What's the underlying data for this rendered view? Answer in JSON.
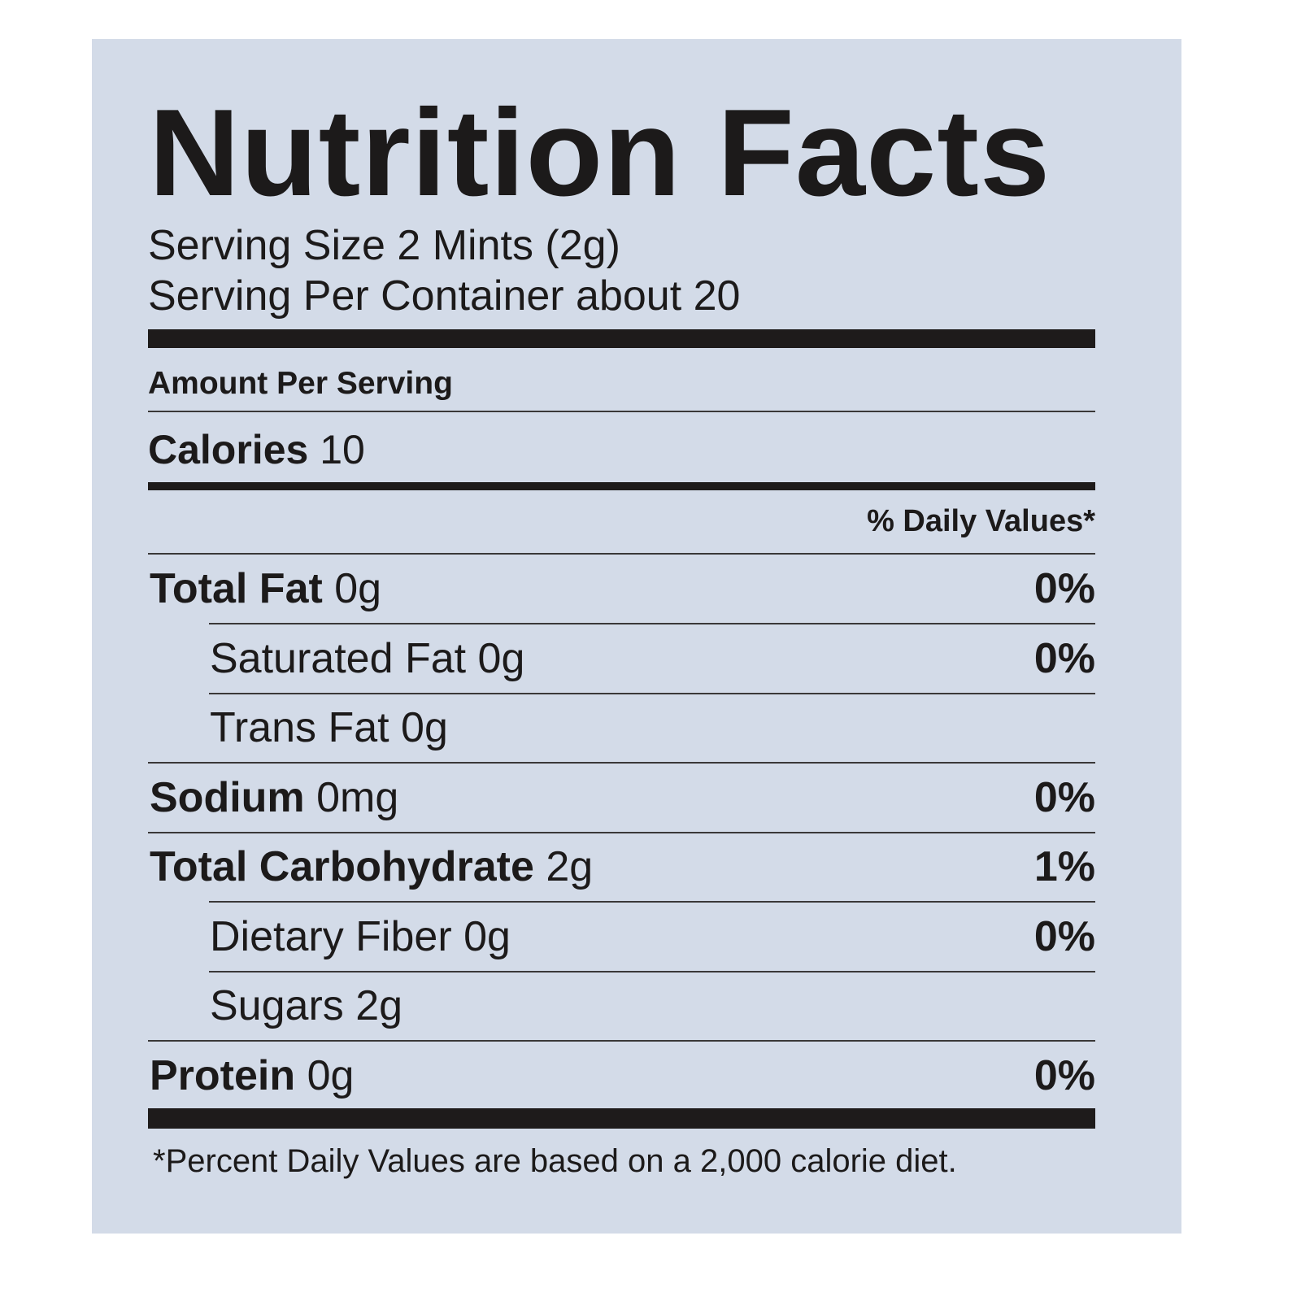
{
  "label": {
    "title": "Nutrition Facts",
    "serving_size": "Serving Size 2 Mints  (2g)",
    "servings_per_container": "Serving Per Container about 20",
    "amount_per_serving": "Amount Per Serving",
    "calories_label": "Calories",
    "calories_value": "10",
    "daily_values_header": "% Daily Values*",
    "rows": [
      {
        "name": "Total Fat",
        "amount": "0g",
        "dv": "0%",
        "bold": true,
        "indent": false
      },
      {
        "name": "Saturated Fat",
        "amount": "0g",
        "dv": "0%",
        "bold": false,
        "indent": true
      },
      {
        "name": "Trans Fat",
        "amount": "0g",
        "dv": "",
        "bold": false,
        "indent": true
      },
      {
        "name": "Sodium",
        "amount": "0mg",
        "dv": "0%",
        "bold": true,
        "indent": false
      },
      {
        "name": "Total Carbohydrate",
        "amount": "2g",
        "dv": "1%",
        "bold": true,
        "indent": false
      },
      {
        "name": "Dietary Fiber",
        "amount": "0g",
        "dv": "0%",
        "bold": false,
        "indent": true
      },
      {
        "name": "Sugars",
        "amount": "2g",
        "dv": "",
        "bold": false,
        "indent": true
      },
      {
        "name": "Protein",
        "amount": "0g",
        "dv": "0%",
        "bold": true,
        "indent": false
      }
    ],
    "footnote": "*Percent Daily Values are based on a 2,000 calorie diet."
  },
  "colors": {
    "background": "#d3dbe8",
    "ink": "#1c1a1a"
  }
}
